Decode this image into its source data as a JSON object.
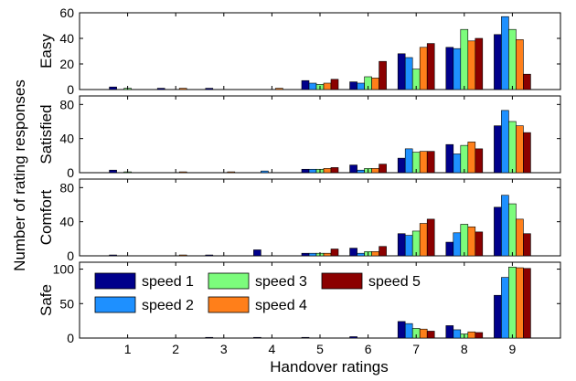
{
  "chart_data": {
    "type": "bar",
    "xlabel": "Handover ratings",
    "ylabel": "Number of rating responses",
    "categories": [
      "1",
      "2",
      "3",
      "4",
      "5",
      "6",
      "7",
      "8",
      "9"
    ],
    "series_names": [
      "speed 1",
      "speed 2",
      "speed 3",
      "speed 4",
      "speed 5"
    ],
    "colors": [
      "#00008b",
      "#1e90ff",
      "#7cfc7c",
      "#ff7f1a",
      "#8b0000"
    ],
    "legend_placement": "inside bottom panel, top-left",
    "grid": false,
    "panels": [
      {
        "label": "Easy",
        "ylim": [
          0,
          60
        ],
        "yticks": [
          0,
          20,
          40,
          60
        ],
        "values": [
          [
            2,
            0,
            1,
            0,
            0
          ],
          [
            1,
            0,
            0,
            1,
            0
          ],
          [
            1,
            0,
            0,
            0,
            0
          ],
          [
            0,
            0,
            0,
            1,
            0
          ],
          [
            7,
            5,
            4,
            5,
            8
          ],
          [
            6,
            5,
            10,
            9,
            22
          ],
          [
            28,
            25,
            16,
            33,
            36
          ],
          [
            33,
            32,
            47,
            38,
            40
          ],
          [
            43,
            57,
            47,
            39,
            12
          ]
        ]
      },
      {
        "label": "Satisfied",
        "ylim": [
          0,
          90
        ],
        "yticks": [
          0,
          40,
          80
        ],
        "values": [
          [
            3,
            0,
            1,
            0,
            0
          ],
          [
            0,
            0,
            0,
            1,
            0
          ],
          [
            0,
            0,
            0,
            1,
            0
          ],
          [
            0,
            2,
            0,
            0,
            0
          ],
          [
            4,
            4,
            4,
            5,
            6
          ],
          [
            9,
            3,
            5,
            5,
            10
          ],
          [
            17,
            28,
            24,
            25,
            25
          ],
          [
            33,
            22,
            32,
            36,
            28
          ],
          [
            55,
            73,
            60,
            55,
            47
          ]
        ]
      },
      {
        "label": "Comfort",
        "ylim": [
          0,
          90
        ],
        "yticks": [
          0,
          40,
          80
        ],
        "values": [
          [
            1,
            0,
            0,
            0,
            0
          ],
          [
            0,
            0,
            0,
            1,
            0
          ],
          [
            1,
            0,
            0,
            0,
            0
          ],
          [
            7,
            0,
            0,
            0,
            0
          ],
          [
            3,
            3,
            3,
            3,
            8
          ],
          [
            9,
            3,
            5,
            5,
            11
          ],
          [
            26,
            24,
            29,
            38,
            43
          ],
          [
            16,
            27,
            37,
            34,
            28
          ],
          [
            57,
            71,
            61,
            43,
            26
          ]
        ]
      },
      {
        "label": "Safe",
        "ylim": [
          0,
          110
        ],
        "yticks": [
          0,
          50,
          100
        ],
        "values": [
          [
            0,
            0,
            0,
            0,
            0
          ],
          [
            0,
            0,
            0,
            0,
            0
          ],
          [
            1,
            0,
            0,
            0,
            0
          ],
          [
            1,
            0,
            0,
            0,
            0
          ],
          [
            1,
            0,
            0,
            0,
            0
          ],
          [
            2,
            0,
            0,
            0,
            0
          ],
          [
            24,
            21,
            14,
            13,
            10
          ],
          [
            18,
            12,
            6,
            9,
            8
          ],
          [
            62,
            88,
            103,
            102,
            101
          ]
        ]
      }
    ]
  }
}
